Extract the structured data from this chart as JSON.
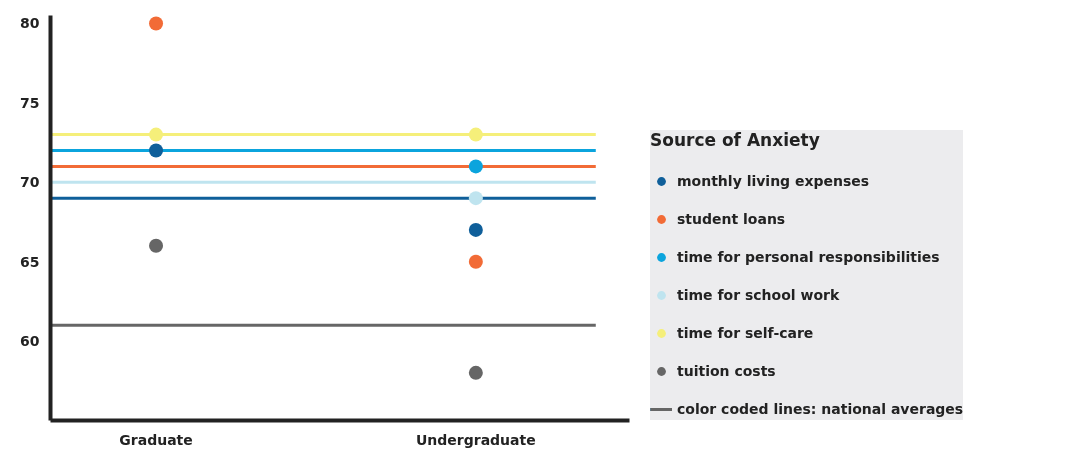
{
  "chart_data": {
    "type": "scatter",
    "categories": [
      "Graduate",
      "Undergraduate"
    ],
    "legend_title": "Source of Anxiety",
    "legend": "right",
    "grid": false,
    "marker": "circle",
    "ylim": [
      55,
      80.5
    ],
    "yticks": [
      60,
      65,
      70,
      75,
      80
    ],
    "series": [
      {
        "name": "monthly living expenses",
        "color": "#0f5f9a",
        "values": [
          72,
          67
        ]
      },
      {
        "name": "student loans",
        "color": "#f26b36",
        "values": [
          80,
          65
        ]
      },
      {
        "name": "time for personal responsibilities",
        "color": "#0ba4dd",
        "values": [
          null,
          71
        ]
      },
      {
        "name": "time for school work",
        "color": "#bfe4ef",
        "values": [
          null,
          69
        ]
      },
      {
        "name": "time for self-care",
        "color": "#f5ef7a",
        "values": [
          73,
          73
        ]
      },
      {
        "name": "tuition costs",
        "color": "#666666",
        "values": [
          66,
          58
        ]
      }
    ],
    "ref_lines": [
      {
        "axis": "y",
        "value": 73,
        "color": "#f5ef7a"
      },
      {
        "axis": "y",
        "value": 72,
        "color": "#0ba4dd"
      },
      {
        "axis": "y",
        "value": 71,
        "color": "#f26b36"
      },
      {
        "axis": "y",
        "value": 70,
        "color": "#bfe4ef"
      },
      {
        "axis": "y",
        "value": 69,
        "color": "#0f5f9a"
      },
      {
        "axis": "y",
        "value": 61,
        "color": "#666666"
      }
    ],
    "annotations": [
      "color coded lines: national averages"
    ]
  }
}
